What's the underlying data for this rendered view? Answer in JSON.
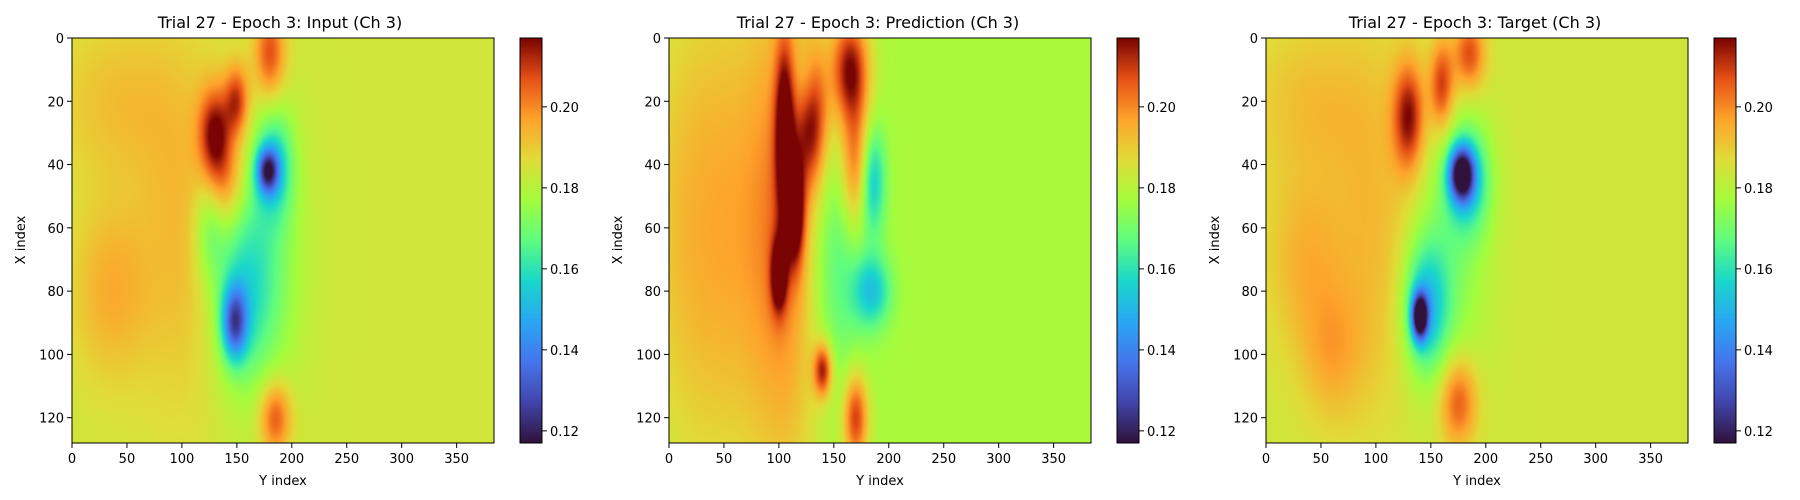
{
  "colormap": "turbo",
  "chart_data": [
    {
      "type": "heatmap",
      "title": "Trial 27 - Epoch 3: Input (Ch 3)",
      "xlabel": "Y index",
      "ylabel": "X index",
      "xlim": [
        0,
        384
      ],
      "ylim": [
        128,
        0
      ],
      "xticks": [
        0,
        50,
        100,
        150,
        200,
        250,
        300,
        350
      ],
      "yticks": [
        0,
        20,
        40,
        60,
        80,
        100,
        120
      ],
      "colorbar": {
        "vmin": 0.117,
        "vmax": 0.217,
        "ticks": [
          0.12,
          0.14,
          0.16,
          0.18,
          0.2
        ],
        "tick_labels": [
          "0.12",
          "0.14",
          "0.16",
          "0.18",
          "0.20"
        ]
      },
      "background_value": 0.184,
      "features": [
        {
          "x": 40,
          "y": 20,
          "sx": 40,
          "sy": 18,
          "v": 0.192
        },
        {
          "x": 100,
          "y": 60,
          "sx": 30,
          "sy": 40,
          "v": 0.193
        },
        {
          "x": 35,
          "y": 80,
          "sx": 25,
          "sy": 20,
          "v": 0.195
        },
        {
          "x": 130,
          "y": 30,
          "sx": 10,
          "sy": 10,
          "v": 0.214
        },
        {
          "x": 150,
          "y": 20,
          "sx": 8,
          "sy": 8,
          "v": 0.21
        },
        {
          "x": 180,
          "y": 5,
          "sx": 10,
          "sy": 10,
          "v": 0.208
        },
        {
          "x": 185,
          "y": 120,
          "sx": 10,
          "sy": 8,
          "v": 0.208
        },
        {
          "x": 140,
          "y": 45,
          "sx": 12,
          "sy": 10,
          "v": 0.2
        },
        {
          "x": 178,
          "y": 42,
          "sx": 7,
          "sy": 5,
          "v": 0.14
        },
        {
          "x": 185,
          "y": 40,
          "sx": 12,
          "sy": 12,
          "v": 0.162
        },
        {
          "x": 148,
          "y": 90,
          "sx": 8,
          "sy": 8,
          "v": 0.142
        },
        {
          "x": 155,
          "y": 80,
          "sx": 20,
          "sy": 20,
          "v": 0.165
        },
        {
          "x": 175,
          "y": 70,
          "sx": 25,
          "sy": 30,
          "v": 0.172
        },
        {
          "x": 125,
          "y": 60,
          "sx": 10,
          "sy": 12,
          "v": 0.17
        }
      ]
    },
    {
      "type": "heatmap",
      "title": "Trial 27 - Epoch 3: Prediction (Ch 3)",
      "xlabel": "Y index",
      "ylabel": "X index",
      "xlim": [
        0,
        384
      ],
      "ylim": [
        128,
        0
      ],
      "xticks": [
        0,
        50,
        100,
        150,
        200,
        250,
        300,
        350
      ],
      "yticks": [
        0,
        20,
        40,
        60,
        80,
        100,
        120
      ],
      "colorbar": {
        "vmin": 0.117,
        "vmax": 0.217,
        "ticks": [
          0.12,
          0.14,
          0.16,
          0.18,
          0.2
        ],
        "tick_labels": [
          "0.12",
          "0.14",
          "0.16",
          "0.18",
          "0.20"
        ]
      },
      "background_value": 0.178,
      "features": [
        {
          "x": 40,
          "y": 60,
          "sx": 50,
          "sy": 60,
          "v": 0.196
        },
        {
          "x": 110,
          "y": 60,
          "sx": 25,
          "sy": 60,
          "v": 0.196
        },
        {
          "x": 105,
          "y": 30,
          "sx": 6,
          "sy": 20,
          "v": 0.21
        },
        {
          "x": 115,
          "y": 55,
          "sx": 6,
          "sy": 12,
          "v": 0.212
        },
        {
          "x": 100,
          "y": 75,
          "sx": 5,
          "sy": 8,
          "v": 0.212
        },
        {
          "x": 130,
          "y": 25,
          "sx": 10,
          "sy": 15,
          "v": 0.21
        },
        {
          "x": 165,
          "y": 10,
          "sx": 12,
          "sy": 12,
          "v": 0.215
        },
        {
          "x": 170,
          "y": 40,
          "sx": 10,
          "sy": 15,
          "v": 0.205
        },
        {
          "x": 140,
          "y": 105,
          "sx": 6,
          "sy": 6,
          "v": 0.212
        },
        {
          "x": 170,
          "y": 120,
          "sx": 8,
          "sy": 10,
          "v": 0.21
        },
        {
          "x": 185,
          "y": 45,
          "sx": 8,
          "sy": 12,
          "v": 0.152
        },
        {
          "x": 185,
          "y": 80,
          "sx": 12,
          "sy": 8,
          "v": 0.155
        },
        {
          "x": 150,
          "y": 70,
          "sx": 20,
          "sy": 30,
          "v": 0.162
        },
        {
          "x": 125,
          "y": 15,
          "sx": 8,
          "sy": 10,
          "v": 0.165
        }
      ]
    },
    {
      "type": "heatmap",
      "title": "Trial 27 - Epoch 3: Target (Ch 3)",
      "xlabel": "Y index",
      "ylabel": "X index",
      "xlim": [
        0,
        384
      ],
      "ylim": [
        128,
        0
      ],
      "xticks": [
        0,
        50,
        100,
        150,
        200,
        250,
        300,
        350
      ],
      "yticks": [
        0,
        20,
        40,
        60,
        80,
        100,
        120
      ],
      "colorbar": {
        "vmin": 0.117,
        "vmax": 0.217,
        "ticks": [
          0.12,
          0.14,
          0.16,
          0.18,
          0.2
        ],
        "tick_labels": [
          "0.12",
          "0.14",
          "0.16",
          "0.18",
          "0.20"
        ]
      },
      "background_value": 0.184,
      "features": [
        {
          "x": 40,
          "y": 20,
          "sx": 40,
          "sy": 18,
          "v": 0.192
        },
        {
          "x": 100,
          "y": 60,
          "sx": 30,
          "sy": 40,
          "v": 0.193
        },
        {
          "x": 35,
          "y": 70,
          "sx": 25,
          "sy": 20,
          "v": 0.194
        },
        {
          "x": 60,
          "y": 100,
          "sx": 20,
          "sy": 15,
          "v": 0.194
        },
        {
          "x": 130,
          "y": 25,
          "sx": 10,
          "sy": 12,
          "v": 0.214
        },
        {
          "x": 160,
          "y": 15,
          "sx": 8,
          "sy": 10,
          "v": 0.21
        },
        {
          "x": 185,
          "y": 5,
          "sx": 10,
          "sy": 8,
          "v": 0.208
        },
        {
          "x": 175,
          "y": 115,
          "sx": 12,
          "sy": 10,
          "v": 0.208
        },
        {
          "x": 178,
          "y": 43,
          "sx": 8,
          "sy": 6,
          "v": 0.125
        },
        {
          "x": 185,
          "y": 45,
          "sx": 14,
          "sy": 12,
          "v": 0.16
        },
        {
          "x": 140,
          "y": 88,
          "sx": 5,
          "sy": 5,
          "v": 0.12
        },
        {
          "x": 145,
          "y": 85,
          "sx": 14,
          "sy": 14,
          "v": 0.155
        },
        {
          "x": 165,
          "y": 70,
          "sx": 25,
          "sy": 30,
          "v": 0.172
        }
      ]
    }
  ]
}
